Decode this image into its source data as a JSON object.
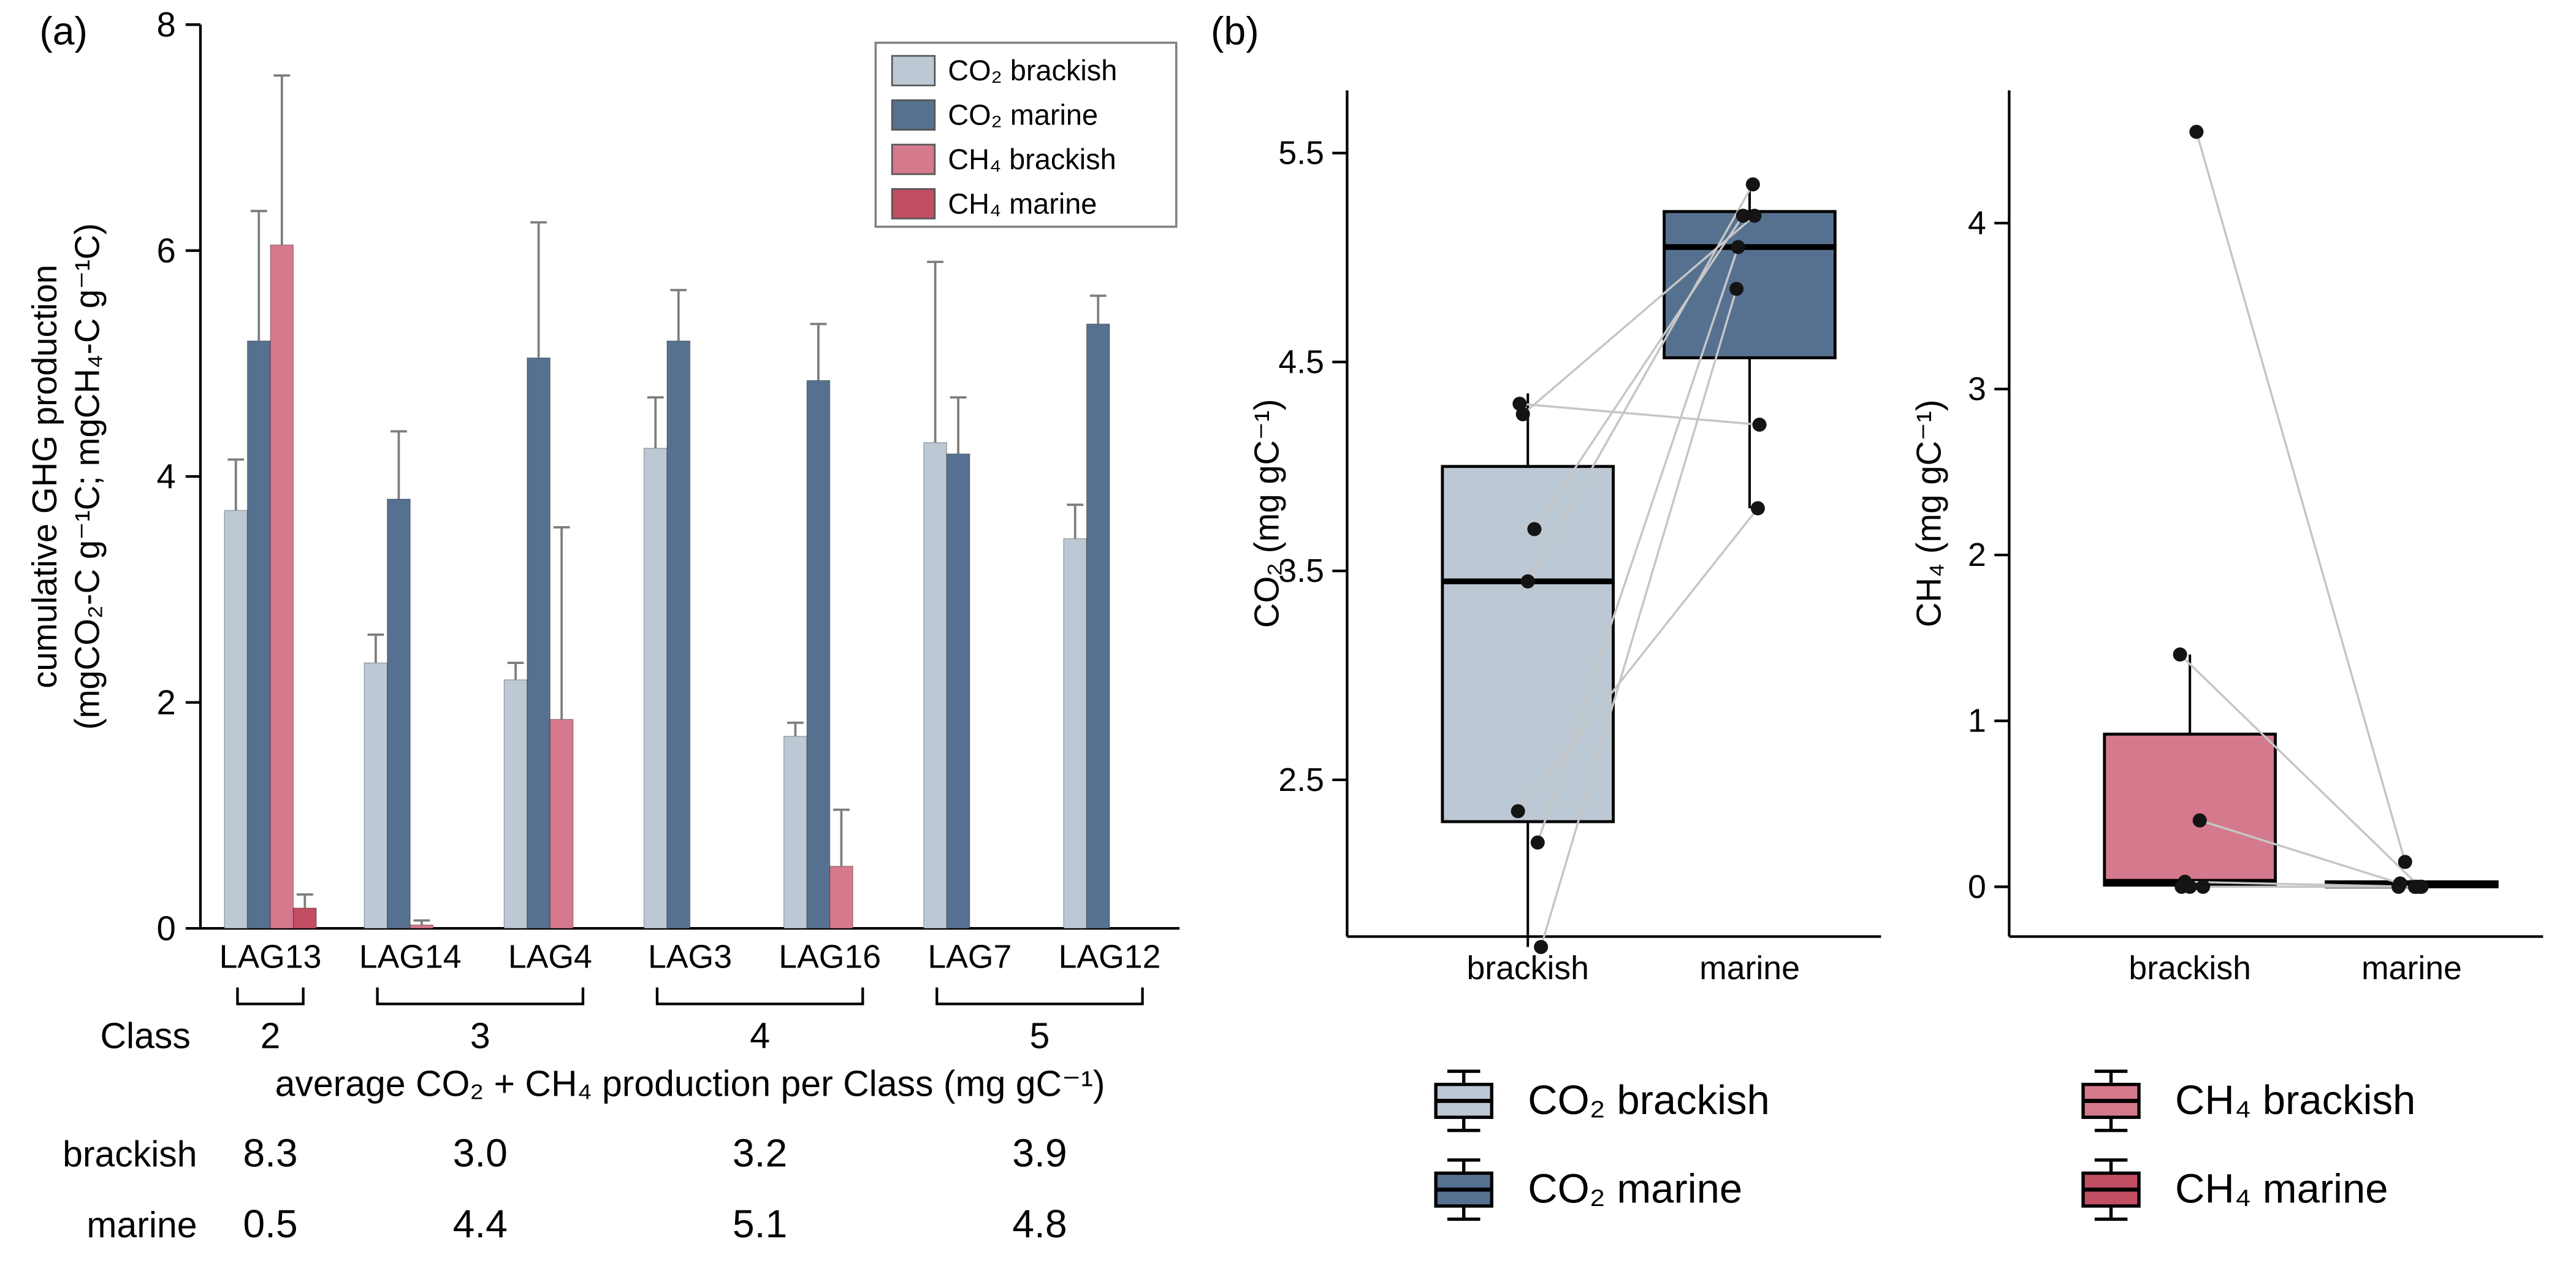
{
  "panels": {
    "a": {
      "label": "(a)"
    },
    "b": {
      "label": "(b)"
    }
  },
  "colors": {
    "co2_brackish": "#bcc8d4",
    "co2_marine": "#567190",
    "ch4_brackish": "#d5798c",
    "ch4_marine": "#c14e63",
    "axis": "#000000",
    "error_bar": "#7d7d7d",
    "pair_line": "#c6c6c6",
    "point": "#141414"
  },
  "chart_data": [
    {
      "id": "panel_a_bars",
      "type": "bar",
      "ylabel_lines": [
        "cumulative GHG production",
        "(mgCO₂-C g⁻¹C; mgCH₄-C g⁻¹C)"
      ],
      "ylim": [
        0,
        8
      ],
      "yticks": [
        0,
        2,
        4,
        6,
        8
      ],
      "categories": [
        "LAG13",
        "LAG14",
        "LAG4",
        "LAG3",
        "LAG16",
        "LAG7",
        "LAG12"
      ],
      "series": [
        {
          "name": "CO₂ brackish",
          "color_key": "co2_brackish",
          "values": [
            3.7,
            2.35,
            2.2,
            4.25,
            1.7,
            4.3,
            3.45
          ],
          "errors_up": [
            0.45,
            0.25,
            0.15,
            0.45,
            0.12,
            1.6,
            0.3
          ]
        },
        {
          "name": "CO₂ marine",
          "color_key": "co2_marine",
          "values": [
            5.2,
            3.8,
            5.05,
            5.2,
            4.85,
            4.2,
            5.35
          ],
          "errors_up": [
            1.15,
            0.6,
            1.2,
            0.45,
            0.5,
            0.5,
            0.25
          ]
        },
        {
          "name": "CH₄ brackish",
          "color_key": "ch4_brackish",
          "values": [
            6.05,
            0.03,
            1.85,
            0,
            0.55,
            0,
            0
          ],
          "errors_up": [
            1.5,
            0.04,
            1.7,
            0,
            0.5,
            0,
            0
          ]
        },
        {
          "name": "CH₄ marine",
          "color_key": "ch4_marine",
          "values": [
            0.18,
            0,
            0,
            0,
            0,
            0,
            0
          ],
          "errors_up": [
            0.12,
            0,
            0,
            0,
            0,
            0,
            0
          ]
        }
      ],
      "legend": [
        "CO₂ brackish",
        "CO₂ marine",
        "CH₄ brackish",
        "CH₄ marine"
      ],
      "legend_position": "top-right",
      "grid": false,
      "class_row_label": "Class",
      "class_groups": [
        {
          "label": "2",
          "categories": [
            "LAG13"
          ]
        },
        {
          "label": "3",
          "categories": [
            "LAG14",
            "LAG4"
          ]
        },
        {
          "label": "4",
          "categories": [
            "LAG3",
            "LAG16"
          ]
        },
        {
          "label": "5",
          "categories": [
            "LAG7",
            "LAG12"
          ]
        }
      ],
      "summary_table": {
        "title": "average CO₂ + CH₄ production per Class (mg gC⁻¹)",
        "rows": [
          {
            "label": "brackish",
            "values": [
              "8.3",
              "3.0",
              "3.2",
              "3.9"
            ]
          },
          {
            "label": "marine",
            "values": [
              "0.5",
              "4.4",
              "5.1",
              "4.8"
            ]
          }
        ]
      }
    },
    {
      "id": "panel_b_co2_box",
      "type": "box",
      "ylabel": "CO₂ (mg gC⁻¹)",
      "ylim": [
        1.75,
        5.8
      ],
      "yticks": [
        2.5,
        3.5,
        4.5,
        5.5
      ],
      "categories": [
        "brackish",
        "marine"
      ],
      "boxes": [
        {
          "category": "brackish",
          "color_key": "co2_brackish",
          "whisker_low": 1.7,
          "q1": 2.3,
          "median": 3.45,
          "q3": 4.0,
          "whisker_high": 4.35
        },
        {
          "category": "marine",
          "color_key": "co2_marine",
          "whisker_low": 3.8,
          "q1": 4.52,
          "median": 5.05,
          "q3": 5.22,
          "whisker_high": 5.35
        }
      ],
      "paired_points": [
        [
          3.7,
          5.2
        ],
        [
          2.35,
          3.8
        ],
        [
          2.2,
          5.05
        ],
        [
          4.25,
          5.2
        ],
        [
          1.7,
          4.85
        ],
        [
          4.3,
          4.2
        ],
        [
          3.45,
          5.35
        ]
      ]
    },
    {
      "id": "panel_b_ch4_box",
      "type": "box",
      "ylabel": "CH₄ (mg gC⁻¹)",
      "ylim": [
        -0.3,
        4.8
      ],
      "yticks": [
        0,
        1,
        2,
        3,
        4
      ],
      "categories": [
        "brackish",
        "marine"
      ],
      "boxes": [
        {
          "category": "brackish",
          "color_key": "ch4_brackish",
          "whisker_low": 0,
          "q1": 0.01,
          "median": 0.03,
          "q3": 0.92,
          "whisker_high": 1.4
        },
        {
          "category": "marine",
          "color_key": "ch4_marine",
          "whisker_low": 0,
          "q1": 0,
          "median": 0.01,
          "q3": 0.03,
          "whisker_high": 0.05
        }
      ],
      "paired_points": [
        [
          4.55,
          0.15
        ],
        [
          1.4,
          0
        ],
        [
          0.4,
          0.02
        ],
        [
          0.03,
          0
        ],
        [
          0,
          0
        ],
        [
          0,
          0
        ],
        [
          0,
          0
        ]
      ]
    }
  ],
  "panel_b_legends": {
    "left": [
      {
        "label": "CO₂ brackish",
        "color_key": "co2_brackish"
      },
      {
        "label": "CO₂ marine",
        "color_key": "co2_marine"
      }
    ],
    "right": [
      {
        "label": "CH₄ brackish",
        "color_key": "ch4_brackish"
      },
      {
        "label": "CH₄ marine",
        "color_key": "ch4_marine"
      }
    ]
  }
}
